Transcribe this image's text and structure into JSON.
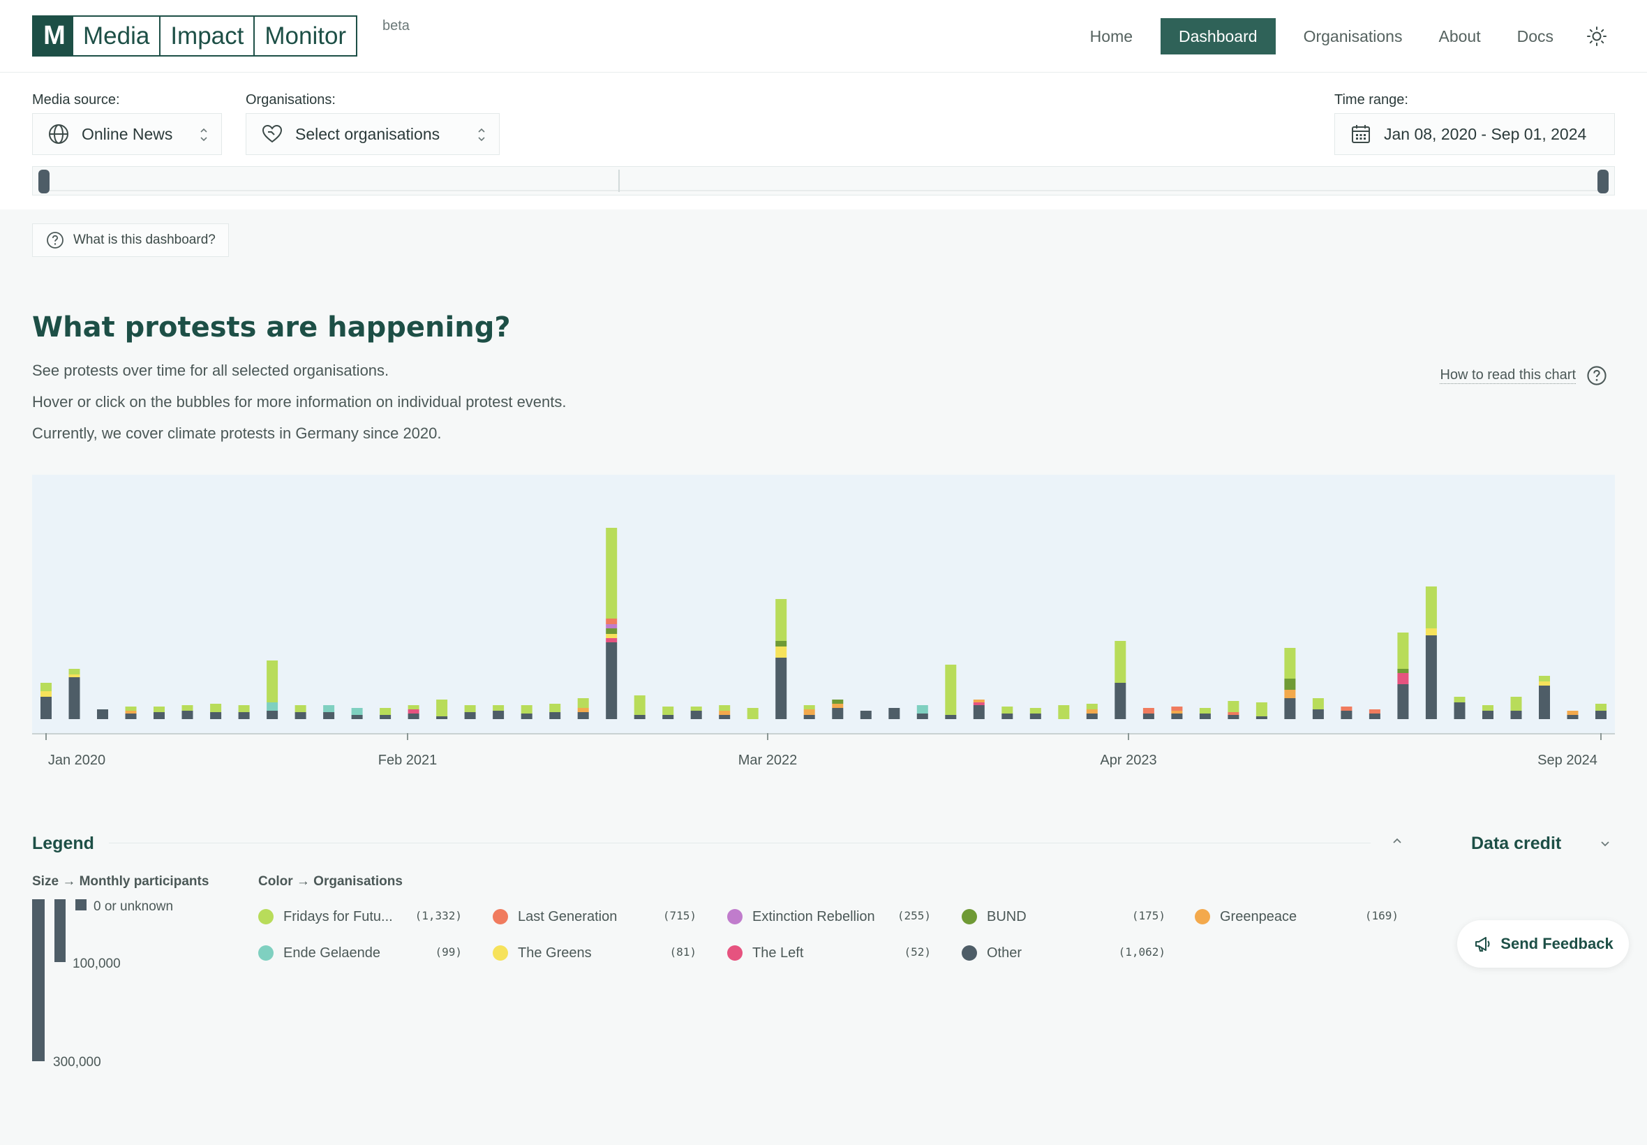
{
  "header": {
    "logo_mark": "M",
    "logo_words": [
      "Media",
      "Impact",
      "Monitor"
    ],
    "beta": "beta",
    "nav": [
      {
        "label": "Home",
        "active": false
      },
      {
        "label": "Dashboard",
        "active": true
      },
      {
        "label": "Organisations",
        "active": false
      },
      {
        "label": "About",
        "active": false
      },
      {
        "label": "Docs",
        "active": false
      }
    ],
    "theme_icon": "sun-icon"
  },
  "filters": {
    "media_source_label": "Media source:",
    "media_source_value": "Online News",
    "organisations_label": "Organisations:",
    "organisations_placeholder": "Select organisations",
    "time_range_label": "Time range:",
    "time_range_value": "Jan 08, 2020 - Sep 01, 2024"
  },
  "help_button": "What is this dashboard?",
  "section": {
    "title": "What protests are happening?",
    "lines": [
      "See protests over time for all selected organisations.",
      "Hover or click on the bubbles for more information on individual protest events.",
      "Currently, we cover climate protests in Germany since 2020."
    ],
    "how_to_read": "How to read this chart"
  },
  "chart_data": {
    "type": "bar",
    "stacked": true,
    "y_unit": "monthly participants (relative height)",
    "x_ticks": [
      "Jan 2020",
      "Feb 2021",
      "Mar 2022",
      "Apr 2023",
      "Sep 2024"
    ],
    "series_order": [
      "Other",
      "The Left",
      "The Greens",
      "Ende Gelaende",
      "Greenpeace",
      "BUND",
      "Extinction Rebellion",
      "Last Generation",
      "Fridays for Future"
    ],
    "colors": {
      "Fridays for Future": "#b8dc5a",
      "Last Generation": "#f07b5e",
      "Extinction Rebellion": "#c07ccc",
      "BUND": "#6f9a35",
      "Greenpeace": "#f3a94c",
      "Ende Gelaende": "#7fd0c0",
      "The Greens": "#f6e25b",
      "The Left": "#e6537f",
      "Other": "#4e5d67"
    },
    "months": [
      {
        "Other": 16,
        "The Greens": 4,
        "Fridays for Future": 6
      },
      {
        "Other": 30,
        "The Greens": 2,
        "Fridays for Future": 4
      },
      {
        "Other": 7
      },
      {
        "Other": 4,
        "Greenpeace": 2,
        "Fridays for Future": 3
      },
      {
        "Other": 5,
        "Fridays for Future": 4
      },
      {
        "Other": 6,
        "Fridays for Future": 4
      },
      {
        "Other": 5,
        "Fridays for Future": 6
      },
      {
        "Other": 5,
        "Fridays for Future": 5
      },
      {
        "Other": 6,
        "Ende Gelaende": 6,
        "Fridays for Future": 30
      },
      {
        "Other": 5,
        "Fridays for Future": 5
      },
      {
        "Other": 5,
        "Ende Gelaende": 5
      },
      {
        "Other": 3,
        "Ende Gelaende": 5
      },
      {
        "Other": 3,
        "Fridays for Future": 5
      },
      {
        "Other": 4,
        "The Left": 3,
        "Fridays for Future": 3
      },
      {
        "Other": 2,
        "Fridays for Future": 12
      },
      {
        "Other": 5,
        "Fridays for Future": 5
      },
      {
        "Other": 6,
        "Fridays for Future": 4
      },
      {
        "Other": 4,
        "Fridays for Future": 6
      },
      {
        "Other": 5,
        "Fridays for Future": 6
      },
      {
        "Other": 5,
        "Greenpeace": 3,
        "Fridays for Future": 7
      },
      {
        "Other": 55,
        "BUND": 4,
        "Extinction Rebellion": 3,
        "The Greens": 3,
        "Last Generation": 4,
        "The Left": 3,
        "Fridays for Future": 65
      },
      {
        "Other": 3,
        "Fridays for Future": 14
      },
      {
        "Other": 3,
        "Fridays for Future": 6
      },
      {
        "Other": 6,
        "Fridays for Future": 3
      },
      {
        "Other": 3,
        "Greenpeace": 3,
        "Fridays for Future": 4
      },
      {
        "Fridays for Future": 8
      },
      {
        "Other": 44,
        "BUND": 4,
        "The Greens": 8,
        "Fridays for Future": 30
      },
      {
        "Other": 3,
        "Greenpeace": 4,
        "Fridays for Future": 3
      },
      {
        "Other": 8,
        "Greenpeace": 3,
        "BUND": 3
      },
      {
        "Other": 6
      },
      {
        "Other": 8
      },
      {
        "Other": 4,
        "Ende Gelaende": 6
      },
      {
        "Other": 3,
        "Fridays for Future": 36
      },
      {
        "Other": 10,
        "Greenpeace": 2,
        "The Left": 2
      },
      {
        "Other": 4,
        "Fridays for Future": 5
      },
      {
        "Other": 4,
        "Fridays for Future": 4
      },
      {
        "Fridays for Future": 10
      },
      {
        "Other": 4,
        "Greenpeace": 3,
        "Fridays for Future": 4
      },
      {
        "Other": 26,
        "Fridays for Future": 30
      },
      {
        "Other": 4,
        "Last Generation": 4
      },
      {
        "Other": 4,
        "Last Generation": 3,
        "Greenpeace": 2
      },
      {
        "Other": 4,
        "Fridays for Future": 4
      },
      {
        "Other": 3,
        "Last Generation": 2,
        "Fridays for Future": 8
      },
      {
        "Other": 2,
        "Fridays for Future": 10
      },
      {
        "Other": 15,
        "Greenpeace": 6,
        "BUND": 8,
        "Fridays for Future": 22
      },
      {
        "Other": 7,
        "Fridays for Future": 8
      },
      {
        "Other": 6,
        "Last Generation": 3
      },
      {
        "Other": 4,
        "Last Generation": 3
      },
      {
        "Other": 25,
        "The Left": 8,
        "BUND": 3,
        "Fridays for Future": 26
      },
      {
        "Other": 60,
        "The Greens": 5,
        "Fridays for Future": 30
      },
      {
        "Other": 12,
        "Fridays for Future": 4
      },
      {
        "Other": 6,
        "Fridays for Future": 4
      },
      {
        "Other": 6,
        "Fridays for Future": 10
      },
      {
        "Other": 24,
        "The Greens": 3,
        "Fridays for Future": 4
      },
      {
        "Other": 3,
        "Greenpeace": 3
      },
      {
        "Other": 6,
        "Fridays for Future": 5
      }
    ]
  },
  "legend": {
    "title": "Legend",
    "data_credit": "Data credit",
    "size_header": "Size",
    "size_header_value": "Monthly participants",
    "color_header": "Color",
    "color_header_value": "Organisations",
    "sizes": [
      {
        "label": "0 or unknown",
        "value": 0
      },
      {
        "label": "100,000",
        "value": 100000
      },
      {
        "label": "300,000",
        "value": 300000
      }
    ],
    "orgs": [
      {
        "name": "Fridays for Futu...",
        "count": "(1,332)",
        "color": "#b8dc5a"
      },
      {
        "name": "Last Generation",
        "count": "(715)",
        "color": "#f07b5e"
      },
      {
        "name": "Extinction Rebellion",
        "count": "(255)",
        "color": "#c07ccc"
      },
      {
        "name": "BUND",
        "count": "(175)",
        "color": "#6f9a35"
      },
      {
        "name": "Greenpeace",
        "count": "(169)",
        "color": "#f3a94c"
      },
      {
        "name": "Ende Gelaende",
        "count": "(99)",
        "color": "#7fd0c0"
      },
      {
        "name": "The Greens",
        "count": "(81)",
        "color": "#f6e25b"
      },
      {
        "name": "The Left",
        "count": "(52)",
        "color": "#e6537f"
      },
      {
        "name": "Other",
        "count": "(1,062)",
        "color": "#4e5d67"
      }
    ]
  },
  "feedback_button": "Send Feedback"
}
